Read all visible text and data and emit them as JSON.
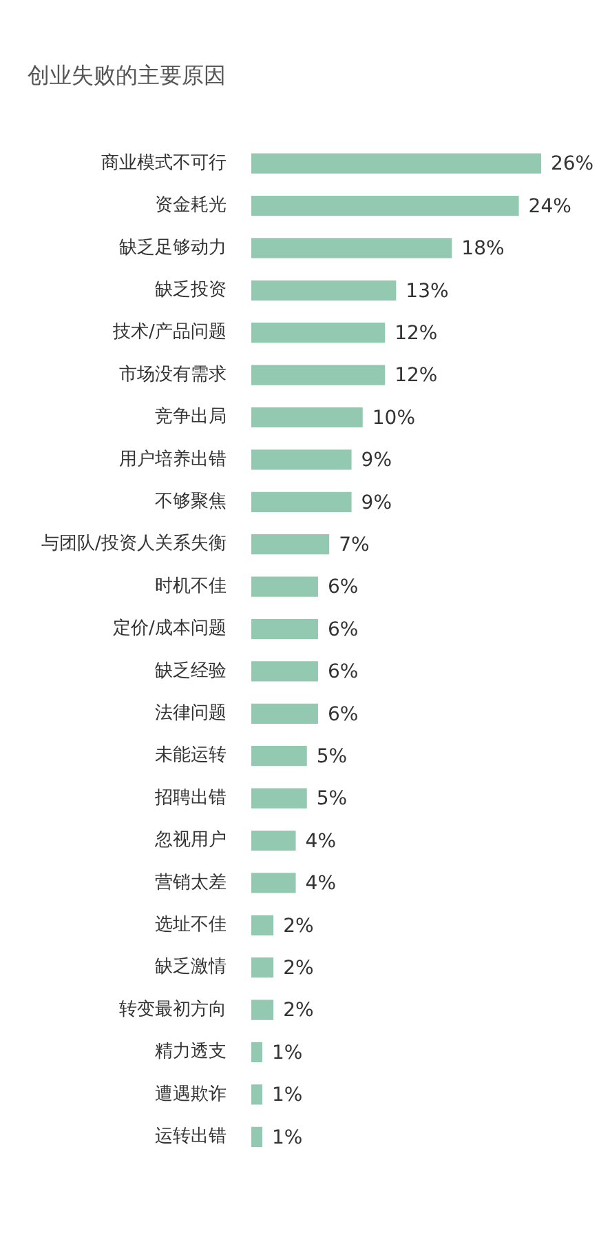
{
  "chart_data": {
    "type": "bar",
    "orientation": "horizontal",
    "title": "创业失败的主要原因",
    "categories": [
      "商业模式不可行",
      "资金耗光",
      "缺乏足够动力",
      "缺乏投资",
      "技术/产品问题",
      "市场没有需求",
      "竞争出局",
      "用户培养出错",
      "不够聚焦",
      "与团队/投资人关系失衡",
      "时机不佳",
      "定价/成本问题",
      "缺乏经验",
      "法律问题",
      "未能运转",
      "招聘出错",
      "忽视用户",
      "营销太差",
      "选址不佳",
      "缺乏激情",
      "转变最初方向",
      "精力透支",
      "遭遇欺诈",
      "运转出错"
    ],
    "values": [
      26,
      24,
      18,
      13,
      12,
      12,
      10,
      9,
      9,
      7,
      6,
      6,
      6,
      6,
      5,
      5,
      4,
      4,
      2,
      2,
      2,
      1,
      1,
      1
    ],
    "value_labels": [
      "26%",
      "24%",
      "18%",
      "13%",
      "12%",
      "12%",
      "10%",
      "9%",
      "9%",
      "7%",
      "6%",
      "6%",
      "6%",
      "6%",
      "5%",
      "5%",
      "4%",
      "4%",
      "2%",
      "2%",
      "2%",
      "1%",
      "1%",
      "1%"
    ],
    "color": "#93c9b0",
    "legend": false
  }
}
